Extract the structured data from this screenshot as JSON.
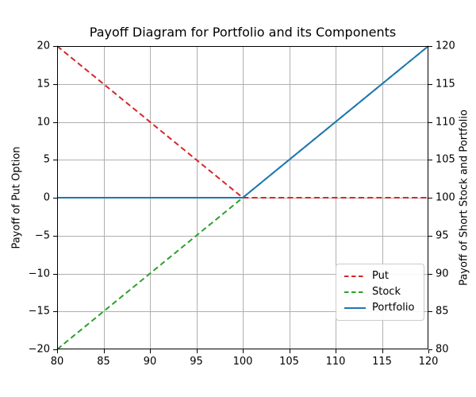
{
  "chart_data": {
    "type": "line",
    "title": "Payoff Diagram for Portfolio and its Components",
    "grid": true,
    "x_axis": {
      "label": "",
      "lim": [
        80,
        120
      ],
      "ticks": [
        {
          "value": 80,
          "label": "80"
        },
        {
          "value": 85,
          "label": "85"
        },
        {
          "value": 90,
          "label": "90"
        },
        {
          "value": 95,
          "label": "95"
        },
        {
          "value": 100,
          "label": "100"
        },
        {
          "value": 105,
          "label": "105"
        },
        {
          "value": 110,
          "label": "110"
        },
        {
          "value": 115,
          "label": "115"
        },
        {
          "value": 120,
          "label": "120"
        }
      ]
    },
    "y_axis_left": {
      "label": "Payoff of Put Option",
      "lim": [
        -20,
        20
      ],
      "ticks": [
        {
          "value": 20,
          "label": "20"
        },
        {
          "value": 15,
          "label": "15"
        },
        {
          "value": 10,
          "label": "10"
        },
        {
          "value": 5,
          "label": "5"
        },
        {
          "value": 0,
          "label": "0"
        },
        {
          "value": -5,
          "label": "−5"
        },
        {
          "value": -10,
          "label": "−10"
        },
        {
          "value": -15,
          "label": "−15"
        },
        {
          "value": -20,
          "label": "−20"
        }
      ]
    },
    "y_axis_right": {
      "label": "Payoff of Short Stock and Portfolio",
      "lim": [
        80,
        120
      ],
      "ticks": [
        {
          "value": 120,
          "label": "120"
        },
        {
          "value": 115,
          "label": "115"
        },
        {
          "value": 110,
          "label": "110"
        },
        {
          "value": 105,
          "label": "105"
        },
        {
          "value": 100,
          "label": "100"
        },
        {
          "value": 95,
          "label": "95"
        },
        {
          "value": 90,
          "label": "90"
        },
        {
          "value": 85,
          "label": "85"
        },
        {
          "value": 80,
          "label": "80"
        }
      ]
    },
    "series": [
      {
        "name": "Put",
        "axis": "left",
        "color": "#d62728",
        "style": "dashed",
        "x": [
          80,
          100,
          120
        ],
        "y": [
          20,
          0,
          0
        ]
      },
      {
        "name": "Stock",
        "axis": "right",
        "color": "#2ca02c",
        "style": "dashed",
        "x": [
          80,
          100,
          120
        ],
        "y": [
          80,
          100,
          120
        ]
      },
      {
        "name": "Portfolio",
        "axis": "right",
        "color": "#1f77b4",
        "style": "solid",
        "x": [
          80,
          100,
          120
        ],
        "y": [
          100,
          100,
          120
        ]
      }
    ],
    "legend": {
      "position": "lower right",
      "items": [
        {
          "label": "Put",
          "color": "#d62728",
          "style": "dashed"
        },
        {
          "label": "Stock",
          "color": "#2ca02c",
          "style": "dashed"
        },
        {
          "label": "Portfolio",
          "color": "#1f77b4",
          "style": "solid"
        }
      ]
    },
    "colors": {
      "grid": "#b0b0b0",
      "spine": "#000000",
      "text": "#000000",
      "background": "#ffffff"
    }
  }
}
